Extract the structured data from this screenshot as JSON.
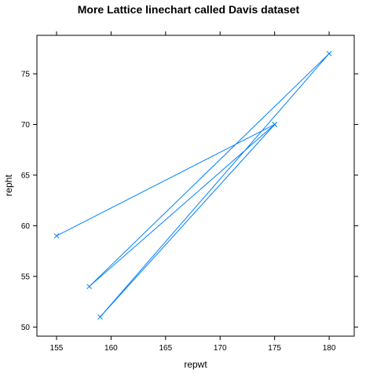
{
  "chart_data": {
    "type": "line",
    "title": "More Lattice linechart called Davis dataset",
    "xlabel": "repwt",
    "ylabel": "repht",
    "xlim": [
      153.2,
      182.3
    ],
    "ylim": [
      49.1,
      78.8
    ],
    "x_ticks": [
      "155",
      "160",
      "165",
      "170",
      "175",
      "180"
    ],
    "y_ticks": [
      "50",
      "55",
      "60",
      "65",
      "70",
      "75"
    ],
    "x_tick_values": [
      155,
      160,
      165,
      170,
      175,
      180
    ],
    "y_tick_values": [
      50,
      55,
      60,
      65,
      70,
      75
    ],
    "grid": false,
    "series": [
      {
        "color": "#0080ff",
        "marker": "x",
        "points": [
          {
            "x": 155,
            "y": 59
          },
          {
            "x": 175,
            "y": 70
          },
          {
            "x": 158,
            "y": 54
          },
          {
            "x": 180,
            "y": 77
          },
          {
            "x": 159,
            "y": 51
          },
          {
            "x": 175,
            "y": 70
          }
        ]
      }
    ]
  }
}
